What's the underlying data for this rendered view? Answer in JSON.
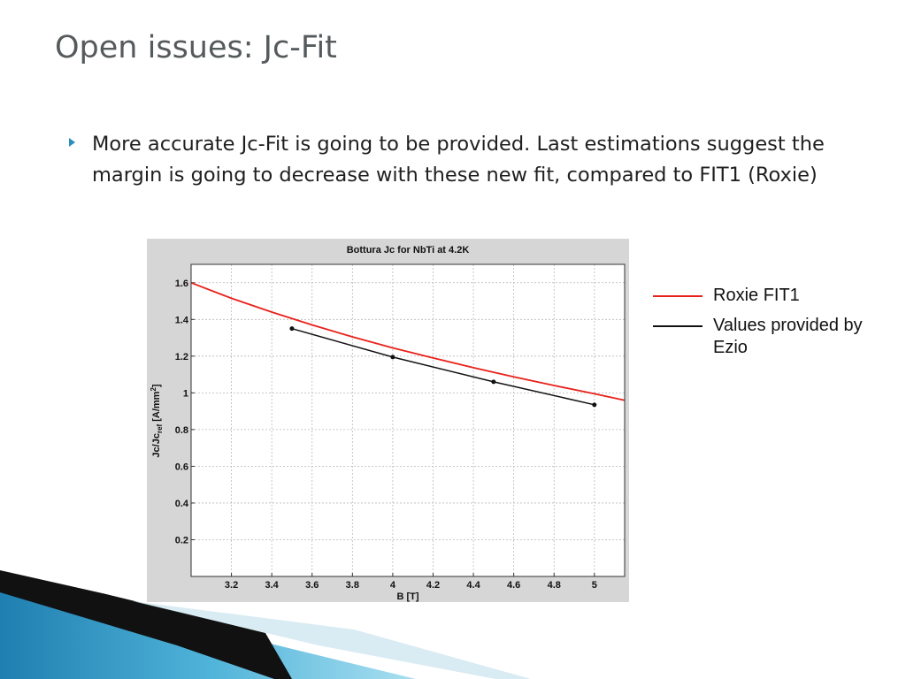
{
  "slide": {
    "title": "Open issues: Jc-Fit",
    "bullet": "More accurate Jc-Fit is going to be provided. Last estimations suggest the margin is going to decrease with these new fit, compared to FIT1 (Roxie)"
  },
  "legend": [
    {
      "label": "Roxie FIT1",
      "color": "#e8211b"
    },
    {
      "label": "Values provided by Ezio",
      "color": "#111111"
    }
  ],
  "chart_data": {
    "type": "line",
    "title": "Bottura Jc for NbTi at 4.2K",
    "xlabel": "B [T]",
    "ylabel_main": "Jc/Jc",
    "ylabel_sub": "ref",
    "ylabel_unit": " [A/mm",
    "ylabel_sup": "2",
    "ylabel_close": "]",
    "xlim": [
      3.0,
      5.15
    ],
    "ylim": [
      0.0,
      1.7
    ],
    "xticks": [
      3.2,
      3.4,
      3.6,
      3.8,
      4,
      4.2,
      4.4,
      4.6,
      4.8,
      5
    ],
    "xtick_labels": [
      "3.2",
      "3.4",
      "3.6",
      "3.8",
      "4",
      "4.2",
      "4.4",
      "4.6",
      "4.8",
      "5"
    ],
    "yticks": [
      0.2,
      0.4,
      0.6,
      0.8,
      1,
      1.2,
      1.4,
      1.6
    ],
    "ytick_labels": [
      "0.2",
      "0.4",
      "0.6",
      "0.8",
      "1",
      "1.2",
      "1.4",
      "1.6"
    ],
    "grid": true,
    "series": [
      {
        "name": "Roxie FIT1",
        "color": "#e8211b",
        "markers": false,
        "x": [
          3.0,
          3.2,
          3.4,
          3.6,
          3.8,
          4.0,
          4.2,
          4.4,
          4.6,
          4.8,
          5.0,
          5.15
        ],
        "y": [
          1.6,
          1.515,
          1.44,
          1.37,
          1.305,
          1.245,
          1.19,
          1.137,
          1.087,
          1.04,
          0.995,
          0.96
        ]
      },
      {
        "name": "Values provided by Ezio",
        "color": "#111111",
        "markers": true,
        "x": [
          3.5,
          4.0,
          4.5,
          5.0
        ],
        "y": [
          1.35,
          1.195,
          1.06,
          0.935
        ]
      }
    ]
  }
}
